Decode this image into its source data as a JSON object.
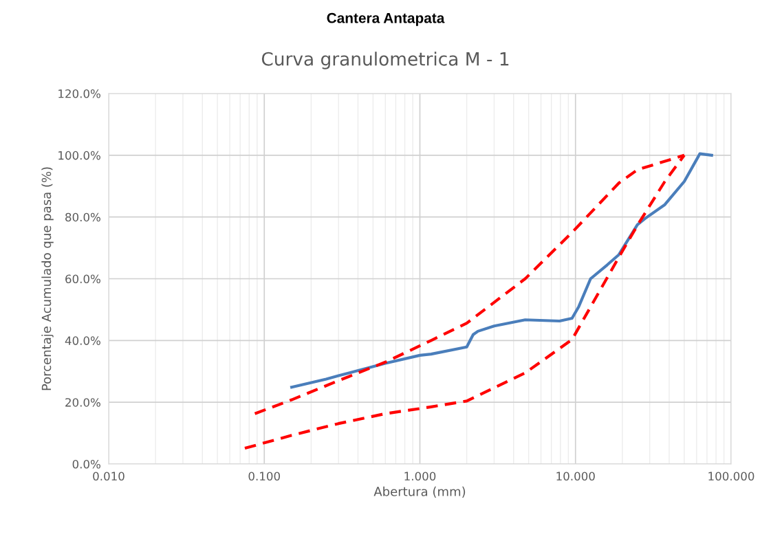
{
  "chart_data": {
    "type": "line",
    "title": "Cantera Antapata",
    "subtitle": "Curva granulometrica M - 1",
    "xlabel": "Abertura (mm)",
    "ylabel": "Porcentaje Acumulado que pasa (%)",
    "log": "x",
    "grid": true,
    "marker": "none",
    "xlim": [
      0.01,
      100
    ],
    "xticks": [
      {
        "value": 0.01,
        "label": "0.010"
      },
      {
        "value": 0.1,
        "label": "0.100"
      },
      {
        "value": 1,
        "label": "1.000"
      },
      {
        "value": 10,
        "label": "10.000"
      },
      {
        "value": 100,
        "label": "100.000"
      }
    ],
    "ylim": [
      0,
      120
    ],
    "yticks": [
      {
        "value": 0,
        "label": "0.0%"
      },
      {
        "value": 20,
        "label": "20.0%"
      },
      {
        "value": 40,
        "label": "40.0%"
      },
      {
        "value": 60,
        "label": "60.0%"
      },
      {
        "value": 80,
        "label": "80.0%"
      },
      {
        "value": 100,
        "label": "100.0%"
      },
      {
        "value": 120,
        "label": "120.0%"
      }
    ],
    "series": [
      {
        "color": "#4a7ebb",
        "line_style": "solid",
        "x": [
          0.15,
          0.25,
          0.3,
          0.53,
          0.6,
          1.0,
          1.18,
          2.0,
          2.2,
          2.36,
          3.0,
          4.75,
          7.9,
          9.5,
          10.5,
          12.5,
          16,
          19,
          25,
          28,
          37.5,
          50,
          63,
          75
        ],
        "values": [
          24.9,
          27.5,
          28.6,
          31.9,
          32.6,
          35.2,
          35.6,
          37.9,
          41.9,
          43,
          44.7,
          46.7,
          46.3,
          47.2,
          51,
          60,
          64.5,
          67.8,
          77.5,
          79.5,
          84,
          91.5,
          100.5,
          100
        ]
      },
      {
        "color": "#ff0000",
        "line_style": "dashed",
        "x": [
          0.087,
          0.15,
          0.3,
          0.6,
          1.18,
          2.0,
          4.75,
          9.5,
          19,
          25,
          50
        ],
        "values": [
          16.3,
          20.8,
          27,
          33,
          40,
          45.6,
          60,
          75,
          91,
          95.3,
          100
        ]
      },
      {
        "color": "#ff0000",
        "line_style": "dashed",
        "x": [
          0.075,
          0.15,
          0.3,
          0.6,
          1.18,
          2.0,
          4.75,
          9.5,
          19,
          25,
          37.5,
          50
        ],
        "values": [
          5.1,
          9.3,
          13.1,
          16.3,
          18.5,
          20.4,
          29.5,
          40.3,
          67,
          77.3,
          91.5,
          100
        ]
      }
    ]
  }
}
